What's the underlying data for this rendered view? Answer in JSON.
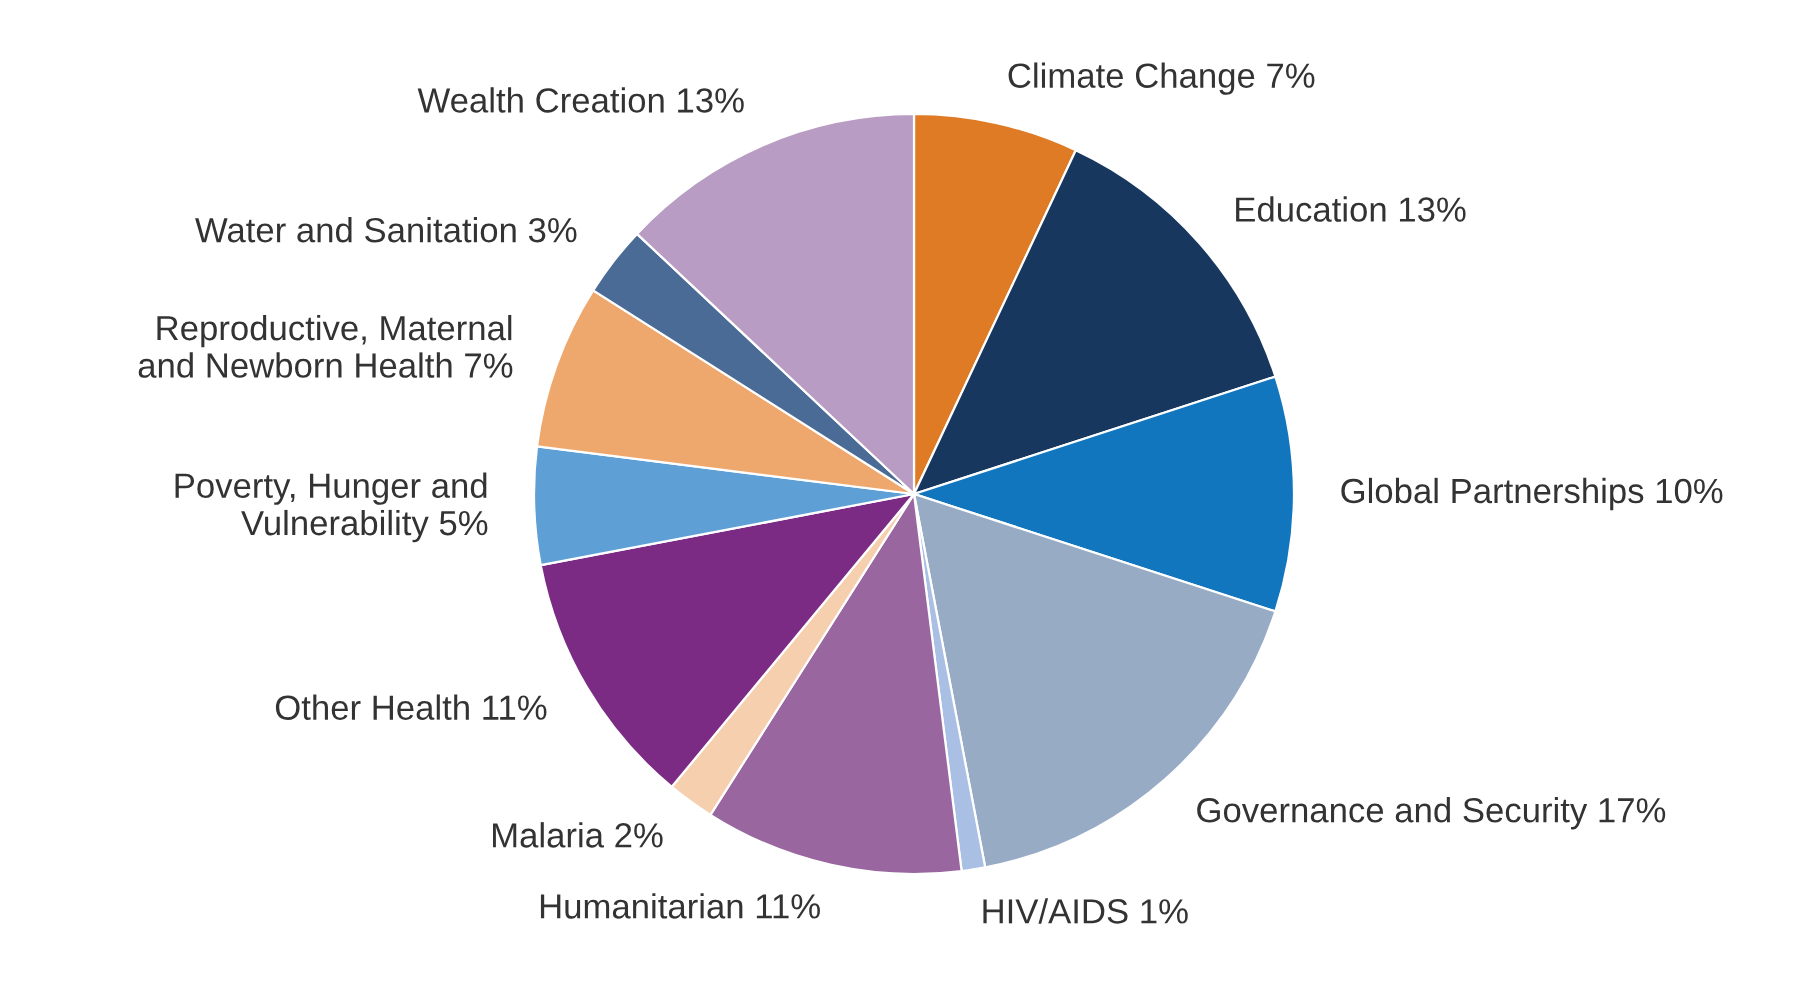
{
  "chart_data": {
    "type": "pie",
    "categories": [
      "Climate Change",
      "Education",
      "Global Partnerships",
      "Governance and Security",
      "HIV/AIDS",
      "Humanitarian",
      "Malaria",
      "Other Health",
      "Poverty, Hunger and\nVulnerability",
      "Reproductive, Maternal\nand Newborn Health",
      "Water and Sanitation",
      "Wealth Creation"
    ],
    "values": [
      7,
      13,
      10,
      17,
      1,
      11,
      2,
      11,
      5,
      7,
      3,
      13
    ],
    "value_labels": [
      "7%",
      "13%",
      "10%",
      "17%",
      "1%",
      "11%",
      "2%",
      "11%",
      "5%",
      "7%",
      "3%",
      "13%"
    ],
    "colors": [
      "#e07b25",
      "#17375e",
      "#1276bf",
      "#98abc5",
      "#a9bfe3",
      "#9966a0",
      "#f5cfae",
      "#7b2b83",
      "#5ea0d6",
      "#eea86d",
      "#4a6b96",
      "#b99cc4"
    ]
  }
}
